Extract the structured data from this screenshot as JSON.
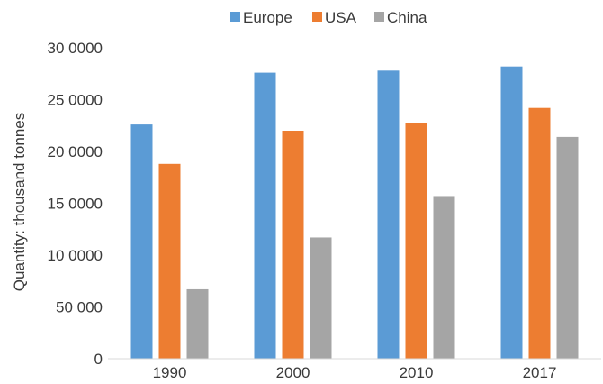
{
  "chart_data": {
    "type": "bar",
    "categories": [
      "1990",
      "2000",
      "2010",
      "2017"
    ],
    "series": [
      {
        "name": "Europe",
        "color": "#5B9BD5",
        "values": [
          226000,
          276000,
          278000,
          282000
        ]
      },
      {
        "name": "USA",
        "color": "#ED7D31",
        "values": [
          188000,
          220000,
          227000,
          242000
        ]
      },
      {
        "name": "China",
        "color": "#A5A5A5",
        "values": [
          67000,
          117000,
          157000,
          214000
        ]
      }
    ],
    "ylabel": "Quantity: thousand tonnes",
    "xlabel": "",
    "ylim": [
      0,
      300000
    ],
    "yticks": [
      0,
      50000,
      100000,
      150000,
      200000,
      250000,
      300000
    ],
    "ytick_labels": [
      "0",
      "50 000",
      "10 0000",
      "15 0000",
      "20 0000",
      "25 0000",
      "30 0000"
    ],
    "grid": false,
    "legend": "top-center"
  }
}
